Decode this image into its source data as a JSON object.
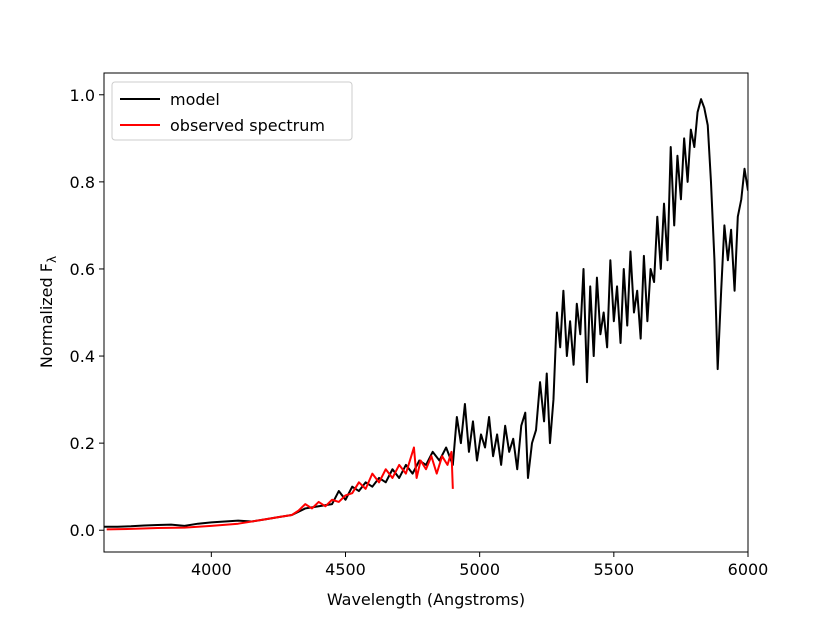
{
  "chart_data": {
    "type": "line",
    "xlabel": "Wavelength (Angstroms)",
    "ylabel": {
      "text": "Normalized F",
      "subscript": "λ"
    },
    "xlim": [
      3600,
      6000
    ],
    "ylim": [
      -0.05,
      1.05
    ],
    "xticks": [
      4000,
      4500,
      5000,
      5500,
      6000
    ],
    "yticks": [
      {
        "value": 0,
        "label": "0.0"
      },
      0.2,
      0.4,
      0.6,
      0.8,
      {
        "value": 1,
        "label": "1.0"
      }
    ],
    "legend": "upper left",
    "series": [
      {
        "name": "model",
        "color": "#000000",
        "x": [
          3600,
          3650,
          3700,
          3750,
          3800,
          3850,
          3900,
          3950,
          4000,
          4050,
          4100,
          4150,
          4200,
          4250,
          4300,
          4350,
          4400,
          4450,
          4475,
          4500,
          4525,
          4550,
          4575,
          4600,
          4625,
          4650,
          4675,
          4700,
          4725,
          4750,
          4775,
          4800,
          4825,
          4850,
          4875,
          4900,
          4915,
          4930,
          4945,
          4960,
          4975,
          4990,
          5005,
          5020,
          5035,
          5050,
          5065,
          5080,
          5095,
          5110,
          5125,
          5140,
          5155,
          5170,
          5180,
          5195,
          5210,
          5225,
          5240,
          5250,
          5262,
          5275,
          5288,
          5300,
          5312,
          5325,
          5337,
          5350,
          5362,
          5375,
          5387,
          5400,
          5412,
          5425,
          5437,
          5450,
          5462,
          5475,
          5487,
          5500,
          5512,
          5525,
          5537,
          5550,
          5562,
          5575,
          5587,
          5600,
          5612,
          5625,
          5637,
          5650,
          5662,
          5675,
          5687,
          5700,
          5712,
          5725,
          5737,
          5750,
          5762,
          5775,
          5787,
          5800,
          5812,
          5825,
          5837,
          5850,
          5862,
          5875,
          5887,
          5900,
          5912,
          5925,
          5937,
          5950,
          5962,
          5975,
          5987,
          6000
        ],
        "values": [
          0.008,
          0.008,
          0.009,
          0.011,
          0.012,
          0.013,
          0.01,
          0.015,
          0.018,
          0.02,
          0.022,
          0.02,
          0.025,
          0.03,
          0.035,
          0.05,
          0.055,
          0.06,
          0.09,
          0.07,
          0.1,
          0.09,
          0.11,
          0.1,
          0.12,
          0.11,
          0.14,
          0.12,
          0.15,
          0.13,
          0.16,
          0.15,
          0.18,
          0.16,
          0.19,
          0.15,
          0.26,
          0.2,
          0.29,
          0.18,
          0.25,
          0.16,
          0.22,
          0.19,
          0.26,
          0.17,
          0.22,
          0.15,
          0.24,
          0.18,
          0.21,
          0.14,
          0.24,
          0.27,
          0.12,
          0.2,
          0.23,
          0.34,
          0.25,
          0.36,
          0.2,
          0.3,
          0.5,
          0.42,
          0.55,
          0.4,
          0.48,
          0.38,
          0.52,
          0.45,
          0.6,
          0.34,
          0.56,
          0.4,
          0.58,
          0.45,
          0.5,
          0.42,
          0.62,
          0.48,
          0.56,
          0.43,
          0.6,
          0.47,
          0.64,
          0.5,
          0.55,
          0.44,
          0.63,
          0.48,
          0.6,
          0.57,
          0.72,
          0.6,
          0.75,
          0.62,
          0.88,
          0.7,
          0.86,
          0.76,
          0.9,
          0.8,
          0.92,
          0.88,
          0.96,
          0.99,
          0.97,
          0.93,
          0.8,
          0.62,
          0.37,
          0.55,
          0.7,
          0.62,
          0.69,
          0.55,
          0.72,
          0.76,
          0.83,
          0.78
        ]
      },
      {
        "name": "observed spectrum",
        "color": "#ff0000",
        "x": [
          3610,
          3700,
          3800,
          3900,
          4000,
          4100,
          4200,
          4250,
          4300,
          4325,
          4350,
          4375,
          4400,
          4425,
          4450,
          4475,
          4500,
          4525,
          4550,
          4575,
          4600,
          4625,
          4650,
          4675,
          4700,
          4725,
          4740,
          4755,
          4765,
          4780,
          4800,
          4820,
          4840,
          4860,
          4880,
          4895,
          4900
        ],
        "values": [
          0.002,
          0.003,
          0.005,
          0.006,
          0.01,
          0.015,
          0.025,
          0.03,
          0.035,
          0.045,
          0.06,
          0.05,
          0.065,
          0.055,
          0.07,
          0.065,
          0.08,
          0.085,
          0.11,
          0.095,
          0.13,
          0.11,
          0.14,
          0.12,
          0.15,
          0.13,
          0.16,
          0.19,
          0.12,
          0.16,
          0.14,
          0.17,
          0.13,
          0.17,
          0.15,
          0.18,
          0.095
        ]
      }
    ]
  }
}
